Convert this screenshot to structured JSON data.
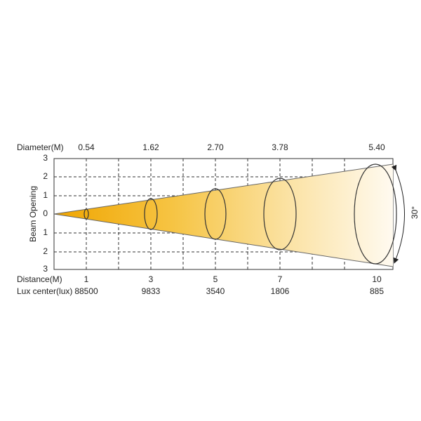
{
  "header": {
    "diameter_label": "Diameter(M)",
    "diameters": [
      "0.54",
      "1.62",
      "2.70",
      "3.78",
      "5.40"
    ]
  },
  "axis": {
    "label": "Beam Opening",
    "ticks": [
      "3",
      "2",
      "1",
      "0",
      "1",
      "2",
      "3"
    ]
  },
  "footer": {
    "distance_label": "Distance(M)",
    "distances": [
      "1",
      "3",
      "5",
      "7",
      "10"
    ],
    "lux_label": "Lux center(lux)",
    "lux": [
      "88500",
      "9833",
      "3540",
      "1806",
      "885"
    ]
  },
  "angle": "30°"
}
